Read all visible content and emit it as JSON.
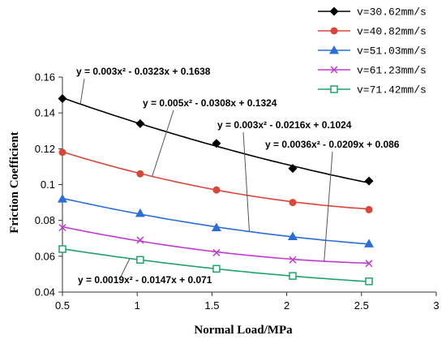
{
  "chart_data": {
    "type": "scatter",
    "xlabel": "Normal Load/MPa",
    "ylabel": "Friction Coefficient",
    "xlim": [
      0.5,
      3
    ],
    "ylim": [
      0.04,
      0.16
    ],
    "x_ticks": [
      "0.5",
      "1",
      "1.5",
      "2",
      "2.5",
      "3"
    ],
    "y_ticks": [
      "0.04",
      "0.06",
      "0.08",
      "0.1",
      "0.12",
      "0.14",
      "0.16"
    ],
    "grid": false,
    "legend_position": "top-right",
    "series": [
      {
        "name": "v=30.62mm/s",
        "color": "#000000",
        "marker": "diamond",
        "x": [
          0.5,
          1.02,
          1.53,
          2.04,
          2.55
        ],
        "y": [
          0.148,
          0.134,
          0.123,
          0.109,
          0.102
        ],
        "fit": {
          "a": 0.003,
          "b": -0.0323,
          "c": 0.1638
        }
      },
      {
        "name": "v=40.82mm/s",
        "color": "#d9473b",
        "marker": "circle",
        "x": [
          0.5,
          1.02,
          1.53,
          2.04,
          2.55
        ],
        "y": [
          0.118,
          0.106,
          0.097,
          0.09,
          0.086
        ],
        "fit": {
          "a": 0.005,
          "b": -0.0308,
          "c": 0.1324
        }
      },
      {
        "name": "v=51.03mm/s",
        "color": "#2a6fd6",
        "marker": "triangle",
        "x": [
          0.5,
          1.02,
          1.53,
          2.04,
          2.55
        ],
        "y": [
          0.092,
          0.084,
          0.076,
          0.071,
          0.067
        ],
        "fit": {
          "a": 0.003,
          "b": -0.0216,
          "c": 0.1024
        }
      },
      {
        "name": "v=61.23mm/s",
        "color": "#c03ad0",
        "marker": "x",
        "x": [
          0.5,
          1.02,
          1.53,
          2.04,
          2.55
        ],
        "y": [
          0.076,
          0.069,
          0.062,
          0.058,
          0.056
        ],
        "fit": {
          "a": 0.0036,
          "b": -0.0209,
          "c": 0.086
        }
      },
      {
        "name": "v=71.42mm/s",
        "color": "#1fa36a",
        "marker": "square",
        "x": [
          0.5,
          1.02,
          1.53,
          2.04,
          2.55
        ],
        "y": [
          0.064,
          0.058,
          0.053,
          0.049,
          0.046
        ],
        "fit": {
          "a": 0.0019,
          "b": -0.0147,
          "c": 0.071
        }
      }
    ],
    "annotations": [
      "y = 0.003x² - 0.0323x + 0.1638",
      "y = 0.005x² - 0.0308x + 0.1324",
      "y = 0.003x² - 0.0216x + 0.1024",
      "y = 0.0036x² - 0.0209x + 0.086",
      "y = 0.0019x² - 0.0147x + 0.071"
    ]
  }
}
